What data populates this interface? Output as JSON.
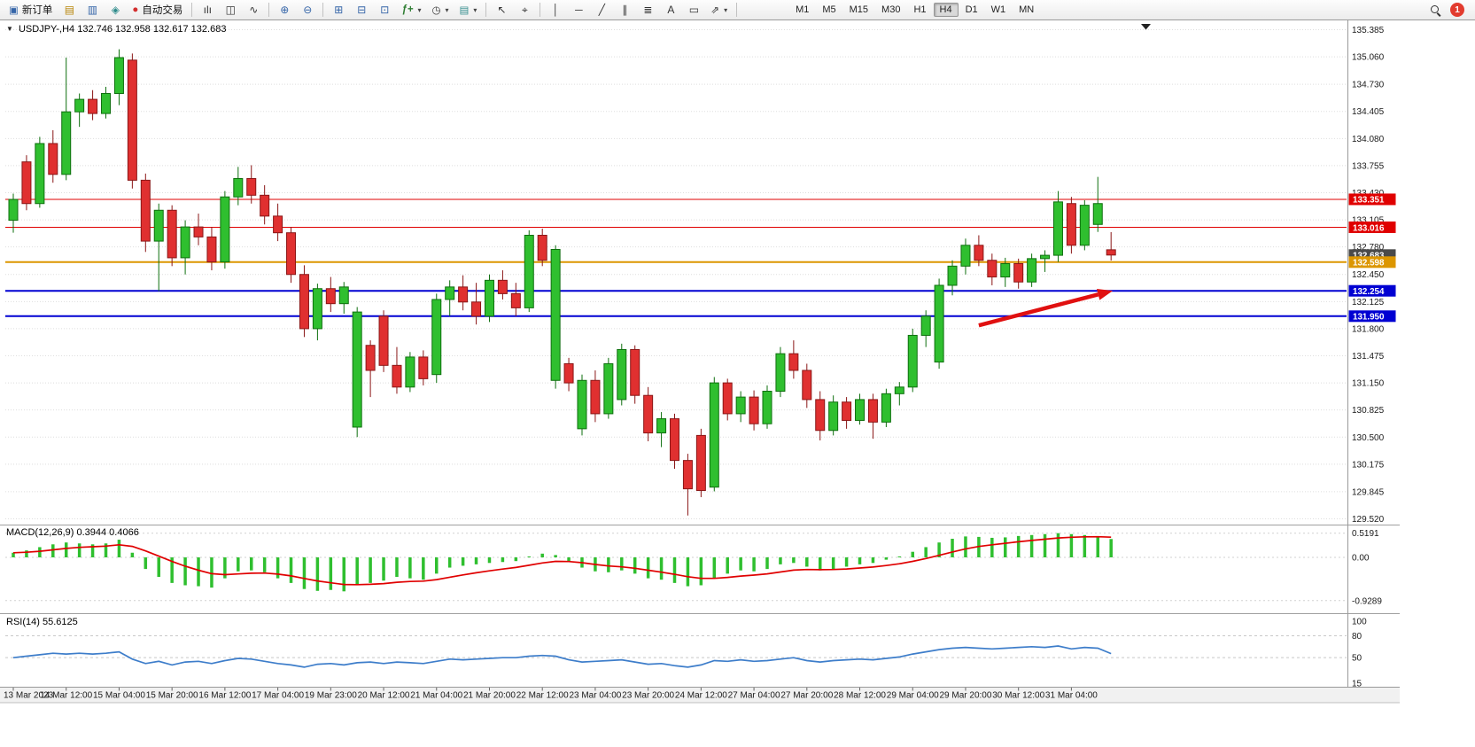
{
  "toolbar": {
    "new_order_label": "新订单",
    "autotrading_label": "自动交易",
    "timeframes": [
      "M1",
      "M5",
      "M15",
      "M30",
      "H1",
      "H4",
      "D1",
      "W1",
      "MN"
    ],
    "active_timeframe": "H4",
    "notification_count": "1"
  },
  "icons": {
    "chart_menu": "▼",
    "new_order": "▣",
    "market_watch": "▤",
    "data_window": "▥",
    "navigator": "◈",
    "autotrading": "●",
    "bar_chart": "ılı",
    "candle_chart": "◫",
    "line_chart": "∿",
    "zoom_in": "⊕",
    "zoom_out": "⊖",
    "tile_windows": "⊞",
    "cascade_windows": "⊟",
    "arrange_windows": "⊡",
    "indicators": "ƒ+",
    "periods": "◷",
    "template": "▤",
    "cursor": "↖",
    "crosshair": "⌖",
    "vertical_line": "│",
    "horizontal_line": "─",
    "trend_line": "╱",
    "channel": "∥",
    "fibonacci": "≣",
    "text_tool": "A",
    "label_tool": "▭",
    "shapes": "⇗",
    "dropdown": "▾"
  },
  "chart": {
    "title": "USDJPY-,H4",
    "ohlc": "132.746 132.958 132.617 132.683"
  },
  "indicators": {
    "macd_name": "MACD(12,26,9)",
    "macd_values": "0.3944 0.4066",
    "rsi_name": "RSI(14)",
    "rsi_value": "55.6125"
  },
  "colors": {
    "bull": "#2fbf2f",
    "bull_border": "#0e6f0e",
    "bear": "#e03030",
    "bear_border": "#8a1616",
    "level_red": "#e00000",
    "level_orange": "#dc9600",
    "level_blue": "#0000d2",
    "current_tag": "#4a4a4a",
    "macd_bar": "#2fbf2f",
    "macd_signal": "#e00000",
    "rsi_line": "#3d7dca",
    "arrow": "#e01010"
  },
  "chart_data": [
    {
      "type": "candlestick",
      "title": "USDJPY-,H4",
      "timeframe": "H4",
      "ylim": [
        129.52,
        135.385
      ],
      "y_axis_labels": [
        "135.385",
        "135.060",
        "134.730",
        "134.405",
        "134.080",
        "133.755",
        "133.430",
        "133.105",
        "132.780",
        "132.450",
        "132.125",
        "131.800",
        "131.475",
        "131.150",
        "130.825",
        "130.500",
        "130.175",
        "129.845",
        "129.520"
      ],
      "x_labels": [
        "13 Mar 2023",
        "14 Mar 12:00",
        "15 Mar 04:00",
        "15 Mar 20:00",
        "16 Mar 12:00",
        "17 Mar 04:00",
        "19 Mar 23:00",
        "20 Mar 12:00",
        "21 Mar 04:00",
        "21 Mar 20:00",
        "22 Mar 12:00",
        "23 Mar 04:00",
        "23 Mar 20:00",
        "24 Mar 12:00",
        "27 Mar 04:00",
        "27 Mar 20:00",
        "28 Mar 12:00",
        "29 Mar 04:00",
        "29 Mar 20:00",
        "30 Mar 12:00",
        "31 Mar 04:00"
      ],
      "levels": [
        {
          "label": "133.351",
          "price": 133.351,
          "color": "#e00000",
          "width": 1,
          "line": true
        },
        {
          "label": "133.016",
          "price": 133.016,
          "color": "#e00000",
          "width": 1,
          "line": true
        },
        {
          "label": "132.683",
          "price": 132.683,
          "color": "#4a4a4a",
          "width": 1,
          "line": false
        },
        {
          "label": "132.598",
          "price": 132.598,
          "color": "#dc9600",
          "width": 2,
          "line": true
        },
        {
          "label": "132.254",
          "price": 132.254,
          "color": "#0000d2",
          "width": 2,
          "line": true
        },
        {
          "label": "131.950",
          "price": 131.95,
          "color": "#0000d2",
          "width": 2,
          "line": true
        }
      ],
      "annotations": [
        {
          "type": "arrow",
          "color": "#e01010",
          "from_bar": 73,
          "from_price": 131.84,
          "to_bar": 83,
          "to_price": 132.25
        }
      ],
      "candles": [
        [
          133.1,
          133.42,
          132.95,
          133.35
        ],
        [
          133.8,
          133.88,
          133.22,
          133.3
        ],
        [
          133.3,
          134.1,
          133.25,
          134.02
        ],
        [
          134.02,
          134.18,
          133.55,
          133.65
        ],
        [
          133.65,
          135.05,
          133.58,
          134.4
        ],
        [
          134.4,
          134.62,
          134.22,
          134.55
        ],
        [
          134.55,
          134.66,
          134.3,
          134.38
        ],
        [
          134.38,
          134.7,
          134.32,
          134.62
        ],
        [
          134.62,
          135.15,
          134.48,
          135.05
        ],
        [
          135.02,
          135.1,
          133.48,
          133.58
        ],
        [
          133.58,
          133.66,
          132.72,
          132.85
        ],
        [
          132.85,
          133.3,
          132.25,
          133.22
        ],
        [
          133.22,
          133.28,
          132.55,
          132.65
        ],
        [
          132.65,
          133.1,
          132.45,
          133.02
        ],
        [
          133.02,
          133.18,
          132.8,
          132.9
        ],
        [
          132.9,
          133.02,
          132.5,
          132.6
        ],
        [
          132.6,
          133.45,
          132.52,
          133.38
        ],
        [
          133.38,
          133.74,
          133.28,
          133.6
        ],
        [
          133.6,
          133.76,
          133.3,
          133.4
        ],
        [
          133.4,
          133.52,
          133.05,
          133.15
        ],
        [
          133.15,
          133.3,
          132.85,
          132.95
        ],
        [
          132.95,
          133.02,
          132.35,
          132.45
        ],
        [
          132.45,
          132.56,
          131.7,
          131.8
        ],
        [
          131.8,
          132.34,
          131.66,
          132.28
        ],
        [
          132.28,
          132.42,
          132.0,
          132.1
        ],
        [
          132.1,
          132.36,
          131.98,
          132.3
        ],
        [
          130.62,
          132.06,
          130.5,
          132.0
        ],
        [
          131.6,
          131.66,
          130.98,
          131.3
        ],
        [
          131.95,
          132.02,
          131.28,
          131.36
        ],
        [
          131.36,
          131.58,
          131.02,
          131.1
        ],
        [
          131.1,
          131.52,
          131.04,
          131.46
        ],
        [
          131.46,
          131.54,
          131.12,
          131.2
        ],
        [
          131.25,
          132.22,
          131.15,
          132.15
        ],
        [
          132.15,
          132.38,
          131.95,
          132.3
        ],
        [
          132.3,
          132.44,
          132.02,
          132.12
        ],
        [
          132.12,
          132.35,
          131.85,
          131.95
        ],
        [
          131.95,
          132.45,
          131.88,
          132.38
        ],
        [
          132.38,
          132.5,
          132.15,
          132.22
        ],
        [
          132.22,
          132.35,
          131.95,
          132.05
        ],
        [
          132.05,
          132.98,
          132.0,
          132.92
        ],
        [
          132.92,
          133.0,
          132.55,
          132.62
        ],
        [
          131.18,
          132.8,
          131.08,
          132.75
        ],
        [
          131.38,
          131.45,
          131.05,
          131.15
        ],
        [
          130.6,
          131.25,
          130.52,
          131.18
        ],
        [
          131.18,
          131.3,
          130.68,
          130.78
        ],
        [
          130.78,
          131.45,
          130.72,
          131.38
        ],
        [
          130.95,
          131.62,
          130.88,
          131.55
        ],
        [
          131.55,
          131.6,
          130.9,
          131.0
        ],
        [
          131.0,
          131.1,
          130.45,
          130.55
        ],
        [
          130.55,
          130.8,
          130.38,
          130.72
        ],
        [
          130.72,
          130.78,
          130.12,
          130.22
        ],
        [
          130.22,
          130.3,
          129.56,
          129.88
        ],
        [
          130.52,
          130.6,
          129.78,
          129.86
        ],
        [
          129.9,
          131.22,
          129.85,
          131.15
        ],
        [
          131.15,
          131.2,
          130.7,
          130.78
        ],
        [
          130.78,
          131.05,
          130.68,
          130.98
        ],
        [
          130.98,
          131.06,
          130.58,
          130.66
        ],
        [
          130.66,
          131.12,
          130.6,
          131.05
        ],
        [
          131.05,
          131.58,
          130.98,
          131.5
        ],
        [
          131.5,
          131.66,
          131.2,
          131.3
        ],
        [
          131.3,
          131.38,
          130.85,
          130.95
        ],
        [
          130.95,
          131.05,
          130.46,
          130.58
        ],
        [
          130.58,
          131.0,
          130.52,
          130.92
        ],
        [
          130.92,
          130.98,
          130.6,
          130.7
        ],
        [
          130.7,
          131.02,
          130.65,
          130.95
        ],
        [
          130.95,
          131.02,
          130.48,
          130.68
        ],
        [
          130.68,
          131.08,
          130.62,
          131.02
        ],
        [
          131.02,
          131.16,
          130.88,
          131.1
        ],
        [
          131.1,
          131.8,
          131.04,
          131.72
        ],
        [
          131.72,
          132.02,
          131.58,
          131.95
        ],
        [
          131.4,
          132.4,
          131.32,
          132.32
        ],
        [
          132.32,
          132.62,
          132.2,
          132.55
        ],
        [
          132.55,
          132.88,
          132.45,
          132.8
        ],
        [
          132.8,
          132.92,
          132.55,
          132.62
        ],
        [
          132.62,
          132.7,
          132.32,
          132.42
        ],
        [
          132.42,
          132.65,
          132.3,
          132.58
        ],
        [
          132.58,
          132.64,
          132.28,
          132.36
        ],
        [
          132.36,
          132.7,
          132.3,
          132.64
        ],
        [
          132.64,
          132.74,
          132.48,
          132.68
        ],
        [
          132.68,
          133.45,
          132.6,
          133.32
        ],
        [
          133.3,
          133.38,
          132.7,
          132.8
        ],
        [
          132.8,
          133.34,
          132.74,
          133.28
        ],
        [
          133.05,
          133.62,
          132.96,
          133.3
        ],
        [
          132.746,
          132.958,
          132.617,
          132.683
        ]
      ]
    },
    {
      "type": "bar",
      "name": "MACD(12,26,9)",
      "axis_labels": [
        "0.5191",
        "0.00",
        "-0.9289"
      ],
      "ylim": [
        -0.9289,
        0.5191
      ],
      "values": [
        0.1,
        0.15,
        0.22,
        0.28,
        0.32,
        0.3,
        0.28,
        0.3,
        0.38,
        0.1,
        -0.25,
        -0.42,
        -0.55,
        -0.6,
        -0.62,
        -0.65,
        -0.45,
        -0.3,
        -0.28,
        -0.32,
        -0.45,
        -0.55,
        -0.68,
        -0.72,
        -0.7,
        -0.73,
        -0.6,
        -0.55,
        -0.5,
        -0.42,
        -0.45,
        -0.48,
        -0.35,
        -0.22,
        -0.18,
        -0.15,
        -0.12,
        -0.1,
        -0.08,
        0.02,
        0.08,
        0.05,
        -0.1,
        -0.22,
        -0.3,
        -0.32,
        -0.28,
        -0.35,
        -0.45,
        -0.48,
        -0.55,
        -0.62,
        -0.6,
        -0.45,
        -0.35,
        -0.28,
        -0.3,
        -0.25,
        -0.15,
        -0.12,
        -0.2,
        -0.28,
        -0.25,
        -0.2,
        -0.15,
        -0.12,
        -0.05,
        0.02,
        0.12,
        0.22,
        0.32,
        0.4,
        0.45,
        0.44,
        0.42,
        0.43,
        0.46,
        0.48,
        0.5,
        0.52,
        0.5,
        0.48,
        0.45,
        0.3944
      ]
    },
    {
      "type": "line",
      "name": "RSI(14)",
      "axis_labels": [
        "100",
        "80",
        "50",
        "15"
      ],
      "level_lines": [
        80,
        50
      ],
      "ylim": [
        15,
        100
      ],
      "values": [
        50,
        52,
        54,
        56,
        55,
        56,
        55,
        56,
        58,
        48,
        42,
        45,
        40,
        44,
        45,
        42,
        46,
        49,
        48,
        45,
        42,
        40,
        37,
        41,
        42,
        40,
        43,
        44,
        42,
        44,
        43,
        42,
        45,
        48,
        47,
        48,
        49,
        50,
        50,
        52,
        53,
        52,
        47,
        44,
        45,
        46,
        47,
        44,
        41,
        42,
        39,
        37,
        40,
        46,
        45,
        47,
        45,
        46,
        48,
        50,
        46,
        44,
        46,
        47,
        48,
        47,
        49,
        51,
        55,
        58,
        61,
        63,
        64,
        63,
        62,
        63,
        64,
        65,
        64,
        66,
        62,
        64,
        63,
        55.6125
      ]
    }
  ]
}
